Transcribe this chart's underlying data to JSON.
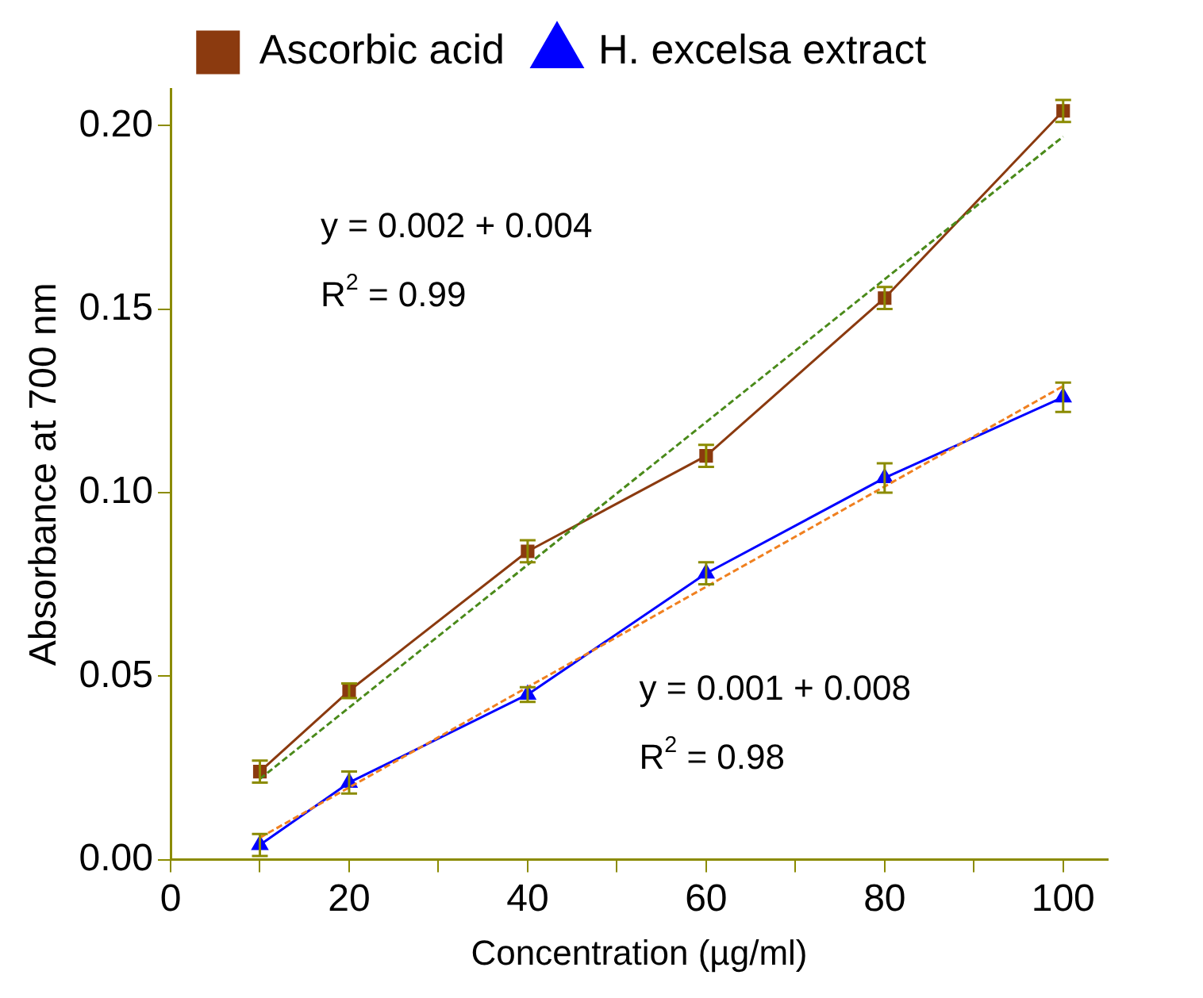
{
  "chart_data": {
    "type": "line",
    "xlabel": "Concentration (µg/ml)",
    "ylabel": "Absorbance at 700 nm",
    "x": [
      10,
      20,
      40,
      60,
      80,
      100
    ],
    "series": [
      {
        "name": "Ascorbic acid",
        "color": "#8b3a0f",
        "marker": "square",
        "values": [
          0.024,
          0.046,
          0.084,
          0.11,
          0.153,
          0.204
        ],
        "errors": [
          0.003,
          0.002,
          0.003,
          0.003,
          0.003,
          0.003
        ]
      },
      {
        "name": "H. excelsa extract",
        "color": "#0000ff",
        "marker": "triangle",
        "values": [
          0.004,
          0.021,
          0.045,
          0.078,
          0.104,
          0.126
        ],
        "errors": [
          0.003,
          0.003,
          0.002,
          0.003,
          0.004,
          0.004
        ]
      },
      {
        "type": "line",
        "color": "#4a8a1a",
        "line_style": "dashed",
        "marker": "none",
        "values": [
          0.022,
          null,
          null,
          null,
          null,
          0.197
        ]
      },
      {
        "type": "line",
        "color": "#f08020",
        "line_style": "dashed",
        "marker": "none",
        "values": [
          0.006,
          null,
          null,
          null,
          null,
          0.129
        ]
      }
    ],
    "xlim": [
      0,
      105
    ],
    "xticks": [
      0,
      {
        "value": 10,
        "label": null
      },
      20,
      {
        "value": 30,
        "label": null
      },
      40,
      {
        "value": 50,
        "label": null
      },
      60,
      {
        "value": 70,
        "label": null
      },
      80,
      {
        "value": 90,
        "label": null
      },
      100
    ],
    "ylim": [
      0,
      0.21
    ],
    "yticks": [
      {
        "value": 0,
        "label": "0.00"
      },
      {
        "value": 0.05,
        "label": "0.05"
      },
      {
        "value": 0.1,
        "label": "0.10"
      },
      {
        "value": 0.15,
        "label": "0.15"
      },
      {
        "value": 0.2,
        "label": "0.20"
      }
    ],
    "grid": false,
    "legend": "top",
    "annotations": [
      "y = 0.002 + 0.004",
      "R$^{2}$ = 0.99",
      "y = 0.001 + 0.008",
      "R$^{2}$ = 0.98"
    ]
  }
}
